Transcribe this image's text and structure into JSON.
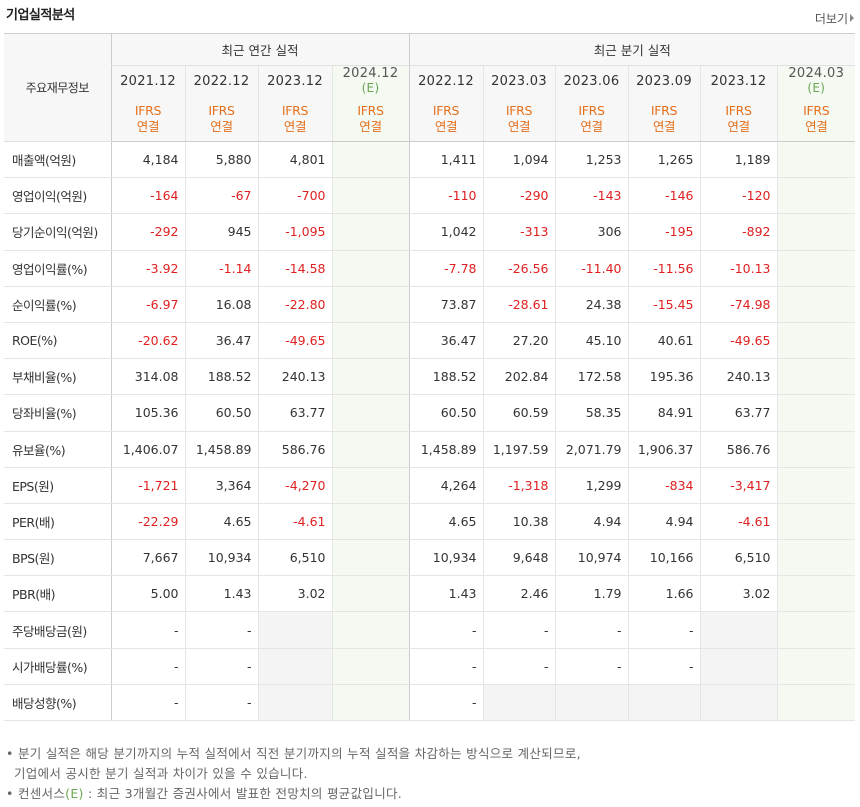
{
  "title": "기업실적분석",
  "more_label": "더보기",
  "header": {
    "label_column": "주요재무정보",
    "annual_group": "최근 연간 실적",
    "quarter_group": "최근 분기 실적",
    "annual_periods": [
      "2021.12",
      "2022.12",
      "2023.12",
      "2024.12"
    ],
    "quarter_periods": [
      "2022.12",
      "2023.03",
      "2023.06",
      "2023.09",
      "2023.12",
      "2024.03"
    ],
    "estimate_mark": "(E)",
    "ifrs_line1": "IFRS",
    "ifrs_line2": "연결"
  },
  "rows": [
    {
      "label": "매출액(억원)",
      "annual": [
        "4,184",
        "5,880",
        "4,801",
        ""
      ],
      "quarter": [
        "1,411",
        "1,094",
        "1,253",
        "1,265",
        "1,189",
        ""
      ]
    },
    {
      "label": "영업이익(억원)",
      "annual": [
        "-164",
        "-67",
        "-700",
        ""
      ],
      "quarter": [
        "-110",
        "-290",
        "-143",
        "-146",
        "-120",
        ""
      ]
    },
    {
      "label": "당기순이익(억원)",
      "annual": [
        "-292",
        "945",
        "-1,095",
        ""
      ],
      "quarter": [
        "1,042",
        "-313",
        "306",
        "-195",
        "-892",
        ""
      ]
    },
    {
      "label": "영업이익률(%)",
      "annual": [
        "-3.92",
        "-1.14",
        "-14.58",
        ""
      ],
      "quarter": [
        "-7.78",
        "-26.56",
        "-11.40",
        "-11.56",
        "-10.13",
        ""
      ]
    },
    {
      "label": "순이익률(%)",
      "annual": [
        "-6.97",
        "16.08",
        "-22.80",
        ""
      ],
      "quarter": [
        "73.87",
        "-28.61",
        "24.38",
        "-15.45",
        "-74.98",
        ""
      ]
    },
    {
      "label": "ROE(%)",
      "annual": [
        "-20.62",
        "36.47",
        "-49.65",
        ""
      ],
      "quarter": [
        "36.47",
        "27.20",
        "45.10",
        "40.61",
        "-49.65",
        ""
      ]
    },
    {
      "label": "부채비율(%)",
      "annual": [
        "314.08",
        "188.52",
        "240.13",
        ""
      ],
      "quarter": [
        "188.52",
        "202.84",
        "172.58",
        "195.36",
        "240.13",
        ""
      ]
    },
    {
      "label": "당좌비율(%)",
      "annual": [
        "105.36",
        "60.50",
        "63.77",
        ""
      ],
      "quarter": [
        "60.50",
        "60.59",
        "58.35",
        "84.91",
        "63.77",
        ""
      ]
    },
    {
      "label": "유보율(%)",
      "annual": [
        "1,406.07",
        "1,458.89",
        "586.76",
        ""
      ],
      "quarter": [
        "1,458.89",
        "1,197.59",
        "2,071.79",
        "1,906.37",
        "586.76",
        ""
      ]
    },
    {
      "label": "EPS(원)",
      "annual": [
        "-1,721",
        "3,364",
        "-4,270",
        ""
      ],
      "quarter": [
        "4,264",
        "-1,318",
        "1,299",
        "-834",
        "-3,417",
        ""
      ]
    },
    {
      "label": "PER(배)",
      "annual": [
        "-22.29",
        "4.65",
        "-4.61",
        ""
      ],
      "quarter": [
        "4.65",
        "10.38",
        "4.94",
        "4.94",
        "-4.61",
        ""
      ]
    },
    {
      "label": "BPS(원)",
      "annual": [
        "7,667",
        "10,934",
        "6,510",
        ""
      ],
      "quarter": [
        "10,934",
        "9,648",
        "10,974",
        "10,166",
        "6,510",
        ""
      ]
    },
    {
      "label": "PBR(배)",
      "annual": [
        "5.00",
        "1.43",
        "3.02",
        ""
      ],
      "quarter": [
        "1.43",
        "2.46",
        "1.79",
        "1.66",
        "3.02",
        ""
      ]
    },
    {
      "label": "주당배당금(원)",
      "annual": [
        "-",
        "-",
        null,
        ""
      ],
      "quarter": [
        "-",
        "-",
        "-",
        "-",
        null,
        ""
      ]
    },
    {
      "label": "시가배당률(%)",
      "annual": [
        "-",
        "-",
        null,
        ""
      ],
      "quarter": [
        "-",
        "-",
        "-",
        "-",
        null,
        ""
      ]
    },
    {
      "label": "배당성향(%)",
      "annual": [
        "-",
        "-",
        null,
        ""
      ],
      "quarter": [
        "-",
        null,
        null,
        null,
        null,
        ""
      ]
    }
  ],
  "notes": {
    "line1": "분기 실적은 해당 분기까지의 누적 실적에서 직전 분기까지의 누적 실적을 차감하는 방식으로 계산되므로,",
    "line2": "기업에서 공시한 분기 실적과 차이가 있을 수 있습니다.",
    "line3_prefix": "컨센서스",
    "line3_mark": "(E)",
    "line3_rest": " : 최근 3개월간 증권사에서 발표한 전망치의 평균값입니다."
  },
  "colors": {
    "negative": "#e02020",
    "ifrs": "#e4701d",
    "estimate_mark": "#6aa84f",
    "estimate_bg": "#f4f9f2",
    "empty_bg": "#f4f4f4"
  }
}
